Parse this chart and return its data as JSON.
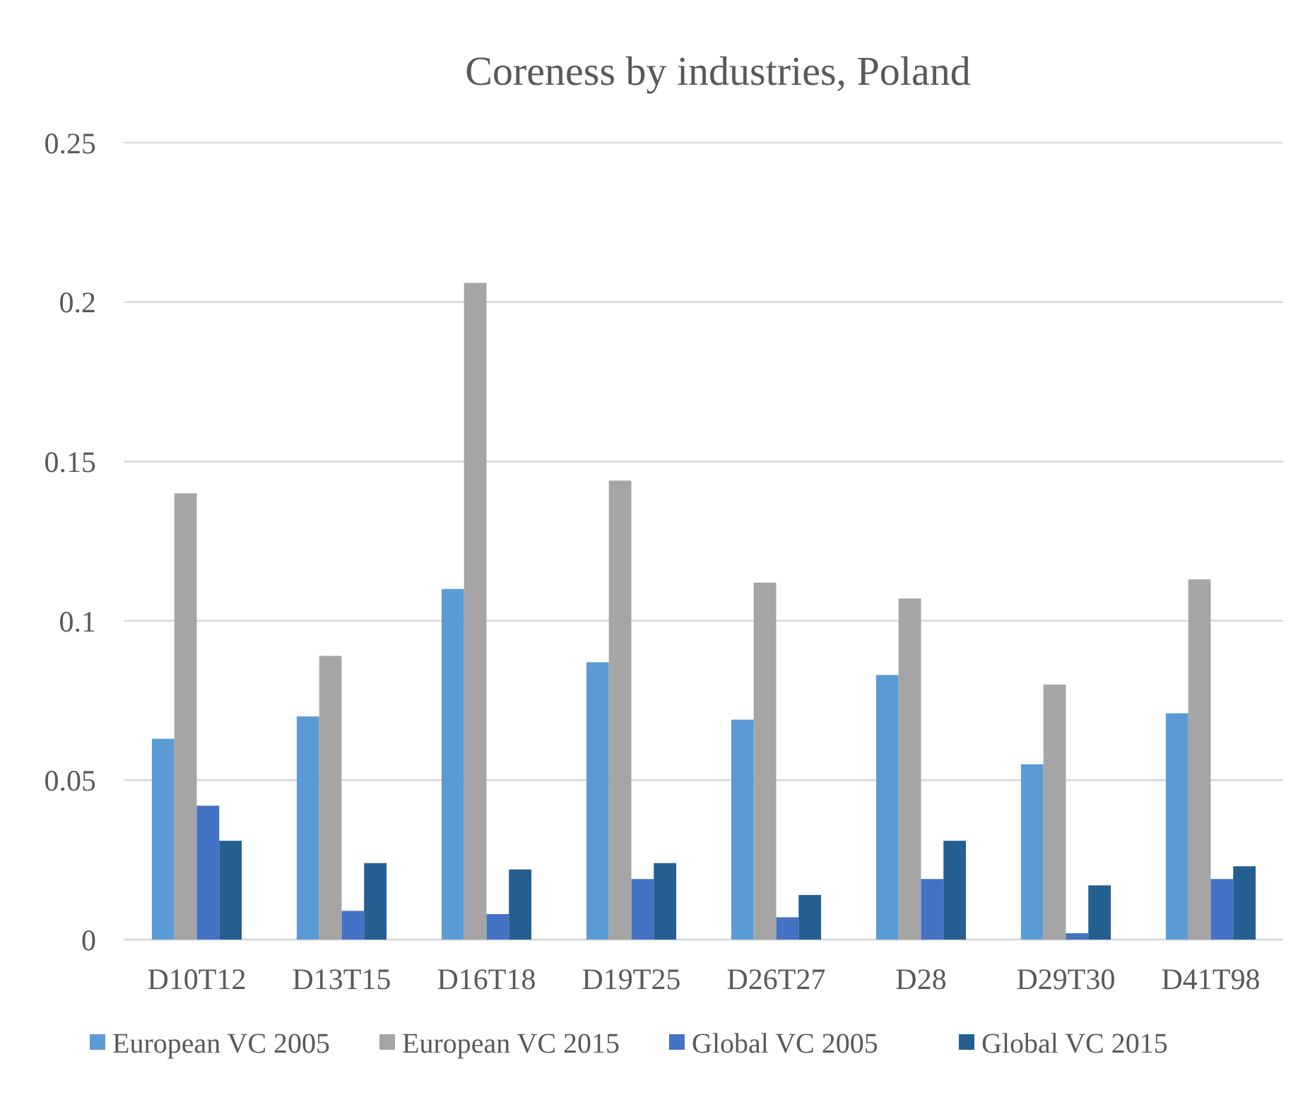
{
  "chart_data": {
    "type": "bar",
    "title": "Coreness by industries, Poland",
    "categories": [
      "D10T12",
      "D13T15",
      "D16T18",
      "D19T25",
      "D26T27",
      "D28",
      "D29T30",
      "D41T98"
    ],
    "series": [
      {
        "name": "European VC 2005",
        "color": "#5b9bd5",
        "values": [
          0.063,
          0.07,
          0.11,
          0.087,
          0.069,
          0.083,
          0.055,
          0.071
        ]
      },
      {
        "name": "European VC 2015",
        "color": "#a5a5a5",
        "values": [
          0.14,
          0.089,
          0.206,
          0.144,
          0.112,
          0.107,
          0.08,
          0.113
        ]
      },
      {
        "name": "Global VC 2005",
        "color": "#4472c4",
        "values": [
          0.042,
          0.009,
          0.008,
          0.019,
          0.007,
          0.019,
          0.002,
          0.019
        ]
      },
      {
        "name": "Global VC 2015",
        "color": "#255e91",
        "values": [
          0.031,
          0.024,
          0.022,
          0.024,
          0.014,
          0.031,
          0.017,
          0.023
        ]
      }
    ],
    "ylim": [
      0,
      0.25
    ],
    "yticks": [
      0,
      0.05,
      0.1,
      0.15,
      0.2,
      0.25
    ],
    "grid": "y",
    "legend": "bottom"
  }
}
